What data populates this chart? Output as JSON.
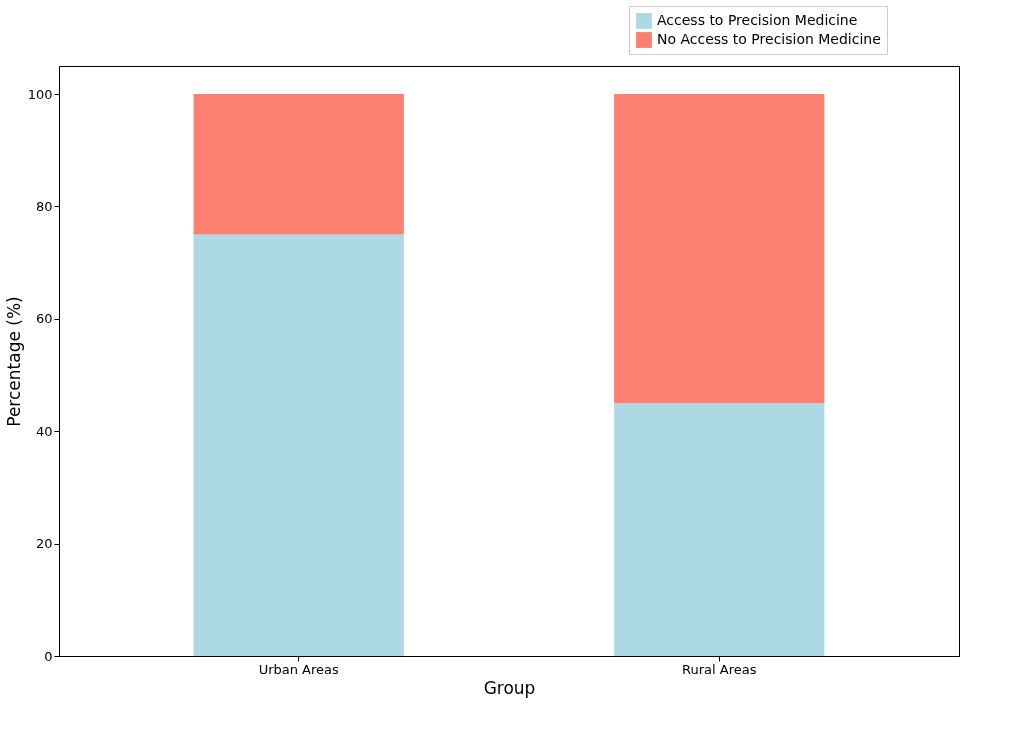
{
  "chart_data": {
    "type": "bar",
    "stacked": true,
    "xlabel": "Group",
    "ylabel": "Percentage (%)",
    "categories": [
      "Urban Areas",
      "Rural Areas"
    ],
    "series": [
      {
        "name": "Access to Precision Medicine",
        "color": "#add8e6",
        "values": [
          75,
          45
        ]
      },
      {
        "name": "No Access to Precision Medicine",
        "color": "#fa8072",
        "values": [
          25,
          55
        ]
      }
    ],
    "ylim": [
      0,
      105
    ],
    "yticks": [
      0,
      20,
      40,
      60,
      80,
      100
    ],
    "grid": false,
    "legend": "top right"
  }
}
